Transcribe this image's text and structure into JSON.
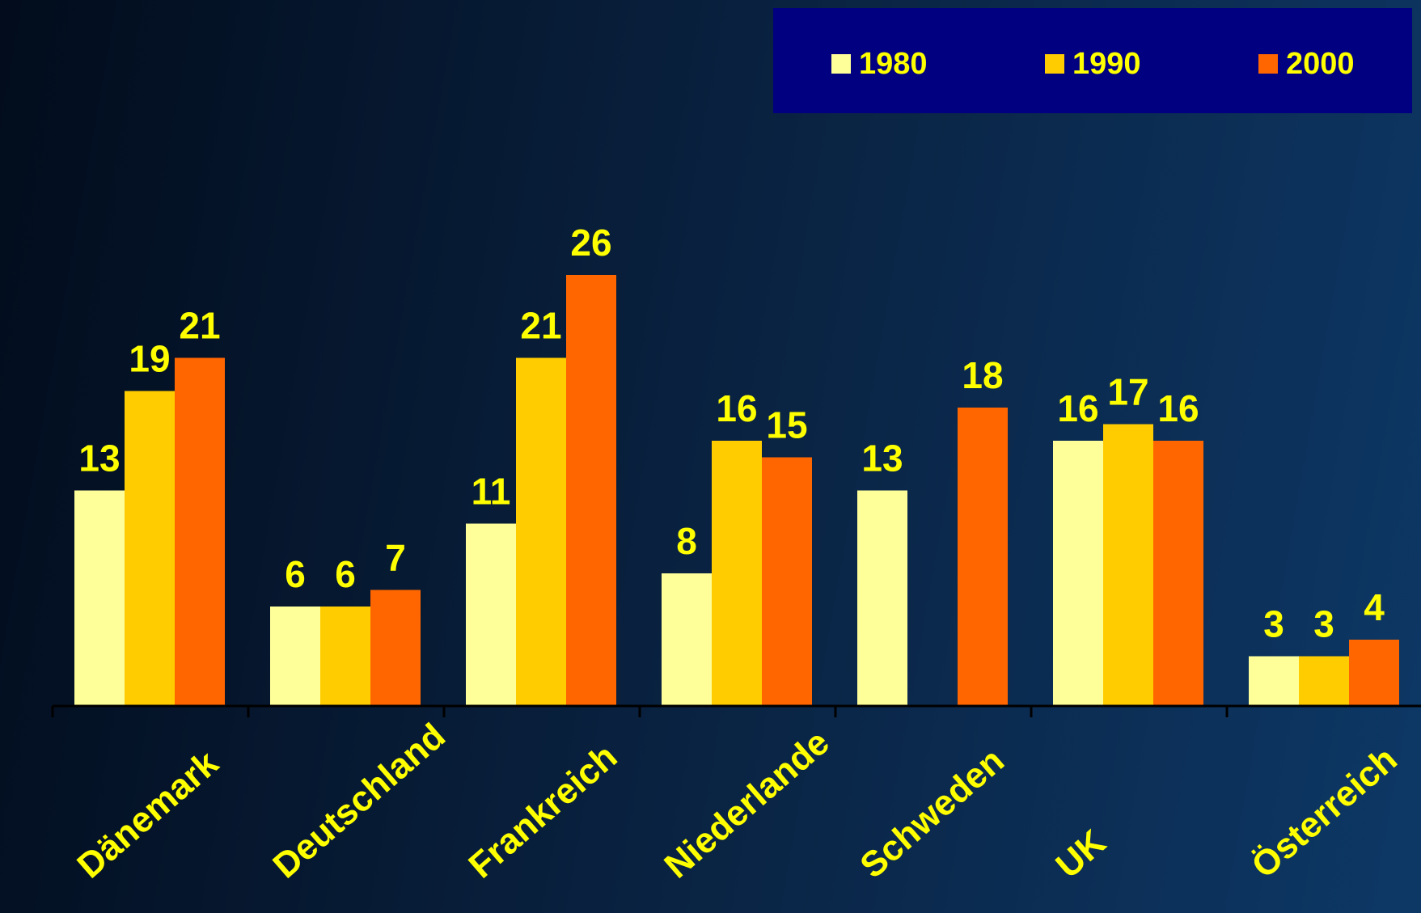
{
  "chart_data": {
    "type": "bar",
    "categories": [
      "Dänemark",
      "Deutschland",
      "Frankreich",
      "Niederlande",
      "Schweden",
      "UK",
      "Österreich"
    ],
    "series": [
      {
        "name": "1980",
        "color": "#ffff99",
        "values": [
          13,
          6,
          11,
          8,
          13,
          16,
          3
        ]
      },
      {
        "name": "1990",
        "color": "#ffcc00",
        "values": [
          19,
          6,
          21,
          16,
          null,
          17,
          3
        ]
      },
      {
        "name": "2000",
        "color": "#ff6600",
        "values": [
          21,
          7,
          26,
          15,
          18,
          16,
          4
        ]
      }
    ],
    "ylim": [
      0,
      30
    ],
    "legend": "top-right",
    "grid": false,
    "label_color": "#ffff00",
    "legend_background": "#000080"
  }
}
